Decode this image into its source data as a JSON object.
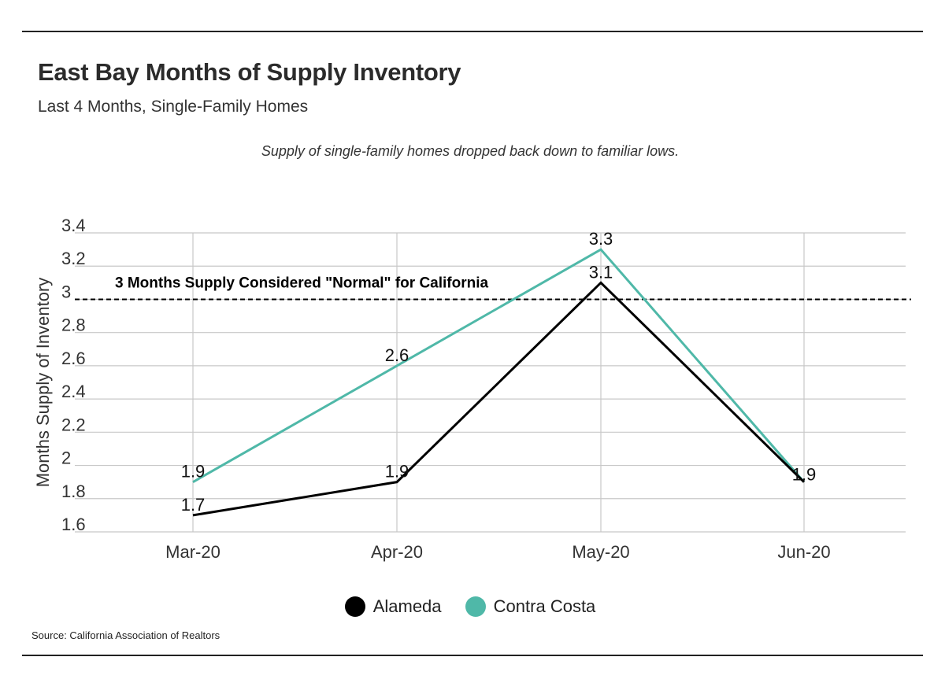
{
  "header": {
    "title": "East Bay Months of Supply Inventory",
    "subtitle": "Last 4 Months, Single-Family Homes",
    "annotation": "Supply of single-family homes dropped back down to familiar lows."
  },
  "footer": {
    "source": "Source:  California Association of Realtors"
  },
  "colors": {
    "alameda": "#000000",
    "contra_costa": "#4fb8a8",
    "grid": "#c8c8c8",
    "reference_line": "#000000"
  },
  "chart_data": {
    "type": "line",
    "title": "East Bay Months of Supply Inventory",
    "subtitle": "Last 4 Months, Single-Family Homes",
    "xlabel": "",
    "ylabel": "Months Supply of Inventory",
    "categories": [
      "Mar-20",
      "Apr-20",
      "May-20",
      "Jun-20"
    ],
    "ylim": [
      1.6,
      3.4
    ],
    "yticks": [
      1.6,
      1.8,
      2,
      2.2,
      2.4,
      2.6,
      2.8,
      3,
      3.2,
      3.4
    ],
    "ytick_labels": [
      "1.6",
      "1.8",
      "2",
      "2.2",
      "2.4",
      "2.6",
      "2.8",
      "3",
      "3.2",
      "3.4"
    ],
    "grid": true,
    "legend_position": "bottom",
    "series": [
      {
        "name": "Alameda",
        "values": [
          1.7,
          1.9,
          3.1,
          1.9
        ],
        "labels": [
          "1.7",
          "1.9",
          "3.1",
          "1.9"
        ]
      },
      {
        "name": "Contra Costa",
        "values": [
          1.9,
          2.6,
          3.3,
          1.9
        ],
        "labels": [
          "1.9",
          "2.6",
          "3.3",
          "1.9"
        ]
      }
    ],
    "reference_line": {
      "value": 3,
      "label": "3 Months Supply Considered \"Normal\" for California",
      "style": "dashed"
    }
  }
}
